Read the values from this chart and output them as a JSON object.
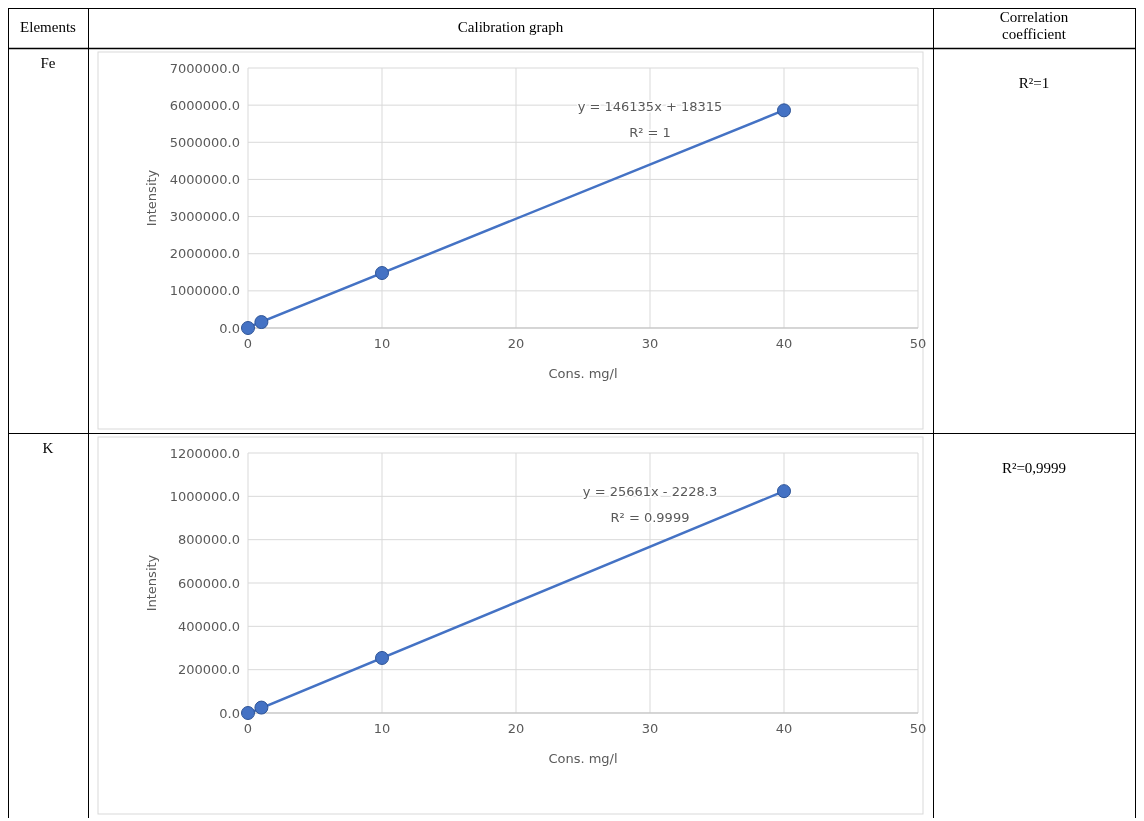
{
  "chart_data": [
    {
      "type": "other",
      "annotations": [
        "Elements",
        "Calibration graph",
        "Correlation coefficient"
      ]
    },
    {
      "type": "scatter",
      "xlabel": "Cons. mg/l",
      "ylabel": "Intensity",
      "grid": true,
      "xlim": [
        0,
        50
      ],
      "xticks": [
        0,
        10,
        20,
        30,
        40,
        50
      ],
      "ylim": [
        0,
        7000000
      ],
      "yticks": [
        {
          "value": 0,
          "label": "0.0"
        },
        {
          "value": 1000000,
          "label": "1000000.0"
        },
        {
          "value": 2000000,
          "label": "2000000.0"
        },
        {
          "value": 3000000,
          "label": "3000000.0"
        },
        {
          "value": 4000000,
          "label": "4000000.0"
        },
        {
          "value": 5000000,
          "label": "5000000.0"
        },
        {
          "value": 6000000,
          "label": "6000000.0"
        },
        {
          "value": 7000000,
          "label": "7000000.0"
        }
      ],
      "series": [
        {
          "type": "scatter",
          "marker": "circle",
          "color": "#4472c4",
          "x": [
            0,
            1,
            10,
            40
          ],
          "values": [
            0,
            160000,
            1480000,
            5860000
          ]
        },
        {
          "type": "line",
          "marker": "none",
          "line_style": "solid",
          "color": "#4472c4",
          "x": [
            0,
            40
          ],
          "values": [
            18000,
            5864000
          ]
        }
      ],
      "annotations": [
        "Fe",
        "y = 146135x + 18315",
        "R² = 1",
        "R²=1"
      ]
    },
    {
      "type": "scatter",
      "xlabel": "Cons. mg/l",
      "ylabel": "Intensity",
      "grid": true,
      "xlim": [
        0,
        50
      ],
      "xticks": [
        0,
        10,
        20,
        30,
        40,
        50
      ],
      "ylim": [
        0,
        1200000
      ],
      "yticks": [
        {
          "value": 0,
          "label": "0.0"
        },
        {
          "value": 200000,
          "label": "200000.0"
        },
        {
          "value": 400000,
          "label": "400000.0"
        },
        {
          "value": 600000,
          "label": "600000.0"
        },
        {
          "value": 800000,
          "label": "800000.0"
        },
        {
          "value": 1000000,
          "label": "1000000.0"
        },
        {
          "value": 1200000,
          "label": "1200000.0"
        }
      ],
      "series": [
        {
          "type": "scatter",
          "marker": "circle",
          "color": "#4472c4",
          "x": [
            0,
            1,
            10,
            40
          ],
          "values": [
            0,
            25000,
            254000,
            1024000
          ]
        },
        {
          "type": "line",
          "marker": "none",
          "line_style": "solid",
          "color": "#4472c4",
          "x": [
            0.1,
            40
          ],
          "values": [
            0,
            1024000
          ]
        }
      ],
      "annotations": [
        "K",
        "y = 25661x - 2228.3",
        "R² = 0.9999",
        "R²=0,9999"
      ]
    }
  ]
}
